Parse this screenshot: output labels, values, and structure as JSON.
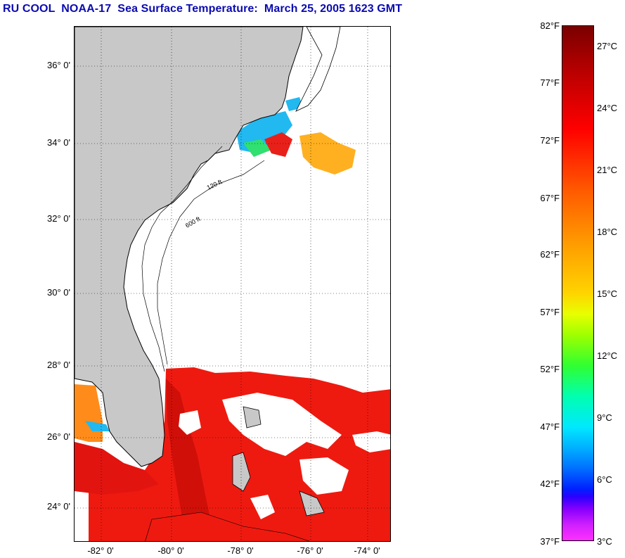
{
  "title": "RU COOL  NOAA-17  Sea Surface Temperature:  March 25, 2005 1623 GMT",
  "map": {
    "latitude_labels": [
      "36° 0'",
      "34° 0'",
      "32° 0'",
      "30° 0'",
      "28° 0'",
      "26° 0'",
      "24° 0'"
    ],
    "longitude_labels": [
      "-82° 0'",
      "-80° 0'",
      "-78° 0'",
      "-76° 0'",
      "-74° 0'"
    ],
    "contour_labels": [
      "120 ft",
      "600 ft"
    ],
    "colors": {
      "land": "#c8c8c8",
      "ocean_nodata": "#ffffff",
      "warm_water": "#ee1a10",
      "gulfstream_dark": "#c80c08",
      "cool_water": "#22b8f0",
      "mid_water": "#ffa020"
    }
  },
  "colorbar": {
    "fahrenheit_labels": [
      "82°F",
      "77°F",
      "72°F",
      "67°F",
      "62°F",
      "57°F",
      "52°F",
      "47°F",
      "42°F",
      "37°F"
    ],
    "celsius_labels": [
      "27°C",
      "24°C",
      "21°C",
      "18°C",
      "15°C",
      "12°C",
      "9°C",
      "6°C",
      "3°C"
    ],
    "range_f": [
      37,
      82
    ],
    "range_c": [
      3,
      27
    ]
  }
}
